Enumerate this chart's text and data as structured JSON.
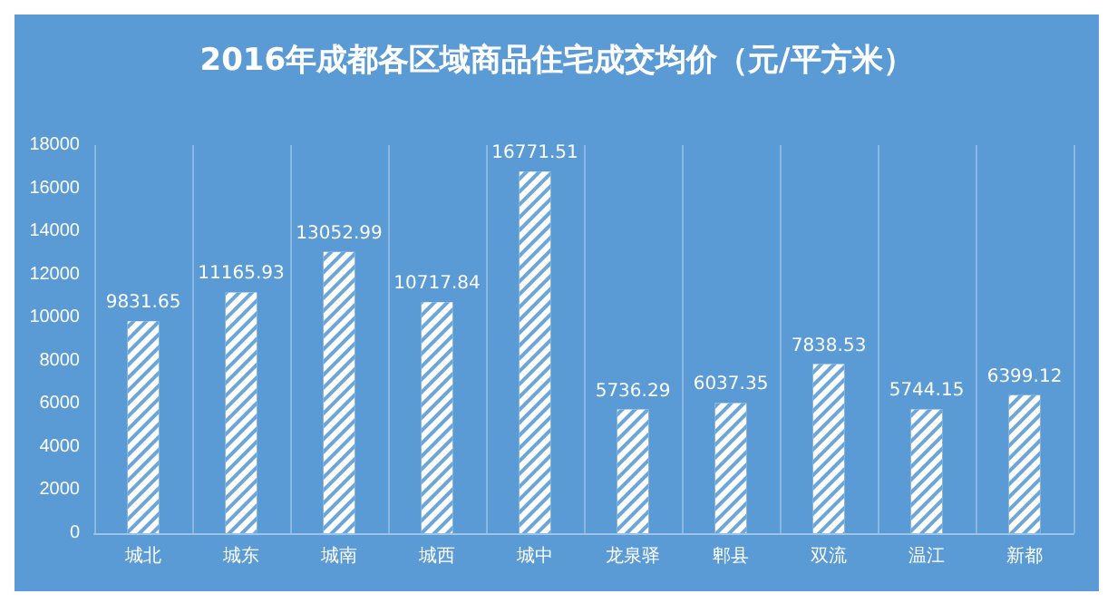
{
  "chart_data": {
    "type": "bar",
    "title": "2016年成都各区域商品住宅成交均价（元/平方米）",
    "categories": [
      "城北",
      "城东",
      "城南",
      "城西",
      "城中",
      "龙泉驿",
      "郫县",
      "双流",
      "温江",
      "新都"
    ],
    "values": [
      9831.65,
      11165.93,
      13052.99,
      10717.84,
      16771.51,
      5736.29,
      6037.35,
      7838.53,
      5744.15,
      6399.12
    ],
    "color": "#ffffff",
    "ylim": [
      0,
      18000
    ],
    "yticks": [
      0,
      2000,
      4000,
      6000,
      8000,
      10000,
      12000,
      14000,
      16000,
      18000
    ],
    "grid": "x",
    "data_labels": true
  }
}
